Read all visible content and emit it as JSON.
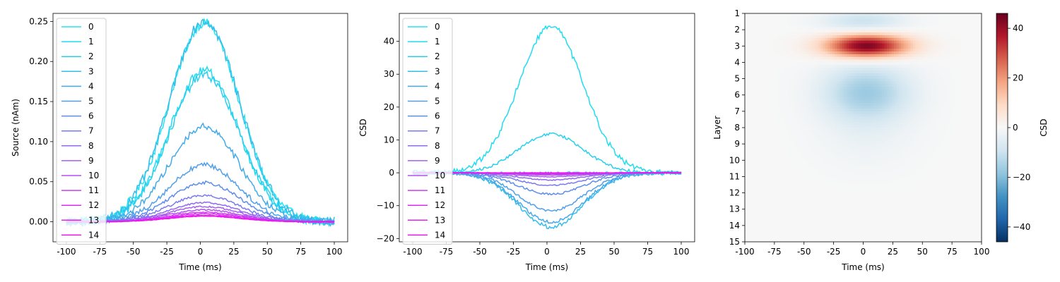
{
  "chart_data": [
    {
      "type": "line",
      "xlabel": "Time (ms)",
      "ylabel": "Source (nAm)",
      "xlim": [
        -110,
        110
      ],
      "ylim": [
        -0.025,
        0.26
      ],
      "xticks": [
        -100,
        -75,
        -50,
        -25,
        0,
        25,
        50,
        75,
        100
      ],
      "yticks": [
        0.0,
        0.05,
        0.1,
        0.15,
        0.2,
        0.25
      ],
      "ytick_labels": [
        "0.00",
        "0.05",
        "0.10",
        "0.15",
        "0.20",
        "0.25"
      ],
      "x_range": [
        -100,
        100
      ],
      "series_shape": "gaussian",
      "series_sigma_ms": 26,
      "series_peak_ms": 3,
      "legend": "upper-left",
      "series": [
        {
          "name": "0",
          "color": "#22e5f3",
          "peak": 0.248,
          "noise": 0.006
        },
        {
          "name": "1",
          "color": "#20dcf1",
          "peak": 0.189,
          "noise": 0.005
        },
        {
          "name": "2",
          "color": "#27d0ee",
          "peak": 0.183,
          "noise": 0.005
        },
        {
          "name": "3",
          "color": "#35bdea",
          "peak": 0.25,
          "noise": 0.006
        },
        {
          "name": "4",
          "color": "#43aaea",
          "peak": 0.119,
          "noise": 0.004
        },
        {
          "name": "5",
          "color": "#4f9fea",
          "peak": 0.071,
          "noise": 0.003
        },
        {
          "name": "6",
          "color": "#5c8ded",
          "peak": 0.049,
          "noise": 0.002
        },
        {
          "name": "7",
          "color": "#7a7aef",
          "peak": 0.033,
          "noise": 0.0015
        },
        {
          "name": "8",
          "color": "#9168f0",
          "peak": 0.024,
          "noise": 0.001
        },
        {
          "name": "9",
          "color": "#a45ff0",
          "peak": 0.019,
          "noise": 0.001
        },
        {
          "name": "10",
          "color": "#b54ff0",
          "peak": 0.015,
          "noise": 0.0008
        },
        {
          "name": "11",
          "color": "#c93df0",
          "peak": 0.012,
          "noise": 0.0006
        },
        {
          "name": "12",
          "color": "#d92ef1",
          "peak": 0.01,
          "noise": 0.0005
        },
        {
          "name": "13",
          "color": "#e620f1",
          "peak": 0.008,
          "noise": 0.0004
        },
        {
          "name": "14",
          "color": "#f012f0",
          "peak": 0.007,
          "noise": 0.0003
        }
      ]
    },
    {
      "type": "line",
      "xlabel": "Time (ms)",
      "ylabel": "CSD",
      "xlim": [
        -110,
        110
      ],
      "ylim": [
        -21,
        48.5
      ],
      "xticks": [
        -100,
        -75,
        -50,
        -25,
        0,
        25,
        50,
        75,
        100
      ],
      "yticks": [
        -20,
        -10,
        0,
        10,
        20,
        30,
        40
      ],
      "ytick_labels": [
        "−20",
        "−10",
        "0",
        "10",
        "20",
        "30",
        "40"
      ],
      "x_range": [
        -100,
        100
      ],
      "series_shape": "gaussian",
      "series_sigma_ms": 24,
      "series_peak_ms": 3,
      "legend": "upper-left",
      "series": [
        {
          "name": "0",
          "color": "#22e5f3",
          "peak": 0.0,
          "noise": 0.3
        },
        {
          "name": "1",
          "color": "#20dcf1",
          "peak": 44.5,
          "noise": 0.9
        },
        {
          "name": "2",
          "color": "#27d0ee",
          "peak": 11.8,
          "noise": 0.4
        },
        {
          "name": "3",
          "color": "#35bdea",
          "peak": -16.5,
          "noise": 0.6
        },
        {
          "name": "4",
          "color": "#43aaea",
          "peak": -15.0,
          "noise": 0.5
        },
        {
          "name": "5",
          "color": "#4f9fea",
          "peak": -11.5,
          "noise": 0.4
        },
        {
          "name": "6",
          "color": "#5c8ded",
          "peak": -6.5,
          "noise": 0.3
        },
        {
          "name": "7",
          "color": "#7a7aef",
          "peak": -3.8,
          "noise": 0.2
        },
        {
          "name": "8",
          "color": "#9168f0",
          "peak": -2.2,
          "noise": 0.15
        },
        {
          "name": "9",
          "color": "#a45ff0",
          "peak": -1.2,
          "noise": 0.1
        },
        {
          "name": "10",
          "color": "#b54ff0",
          "peak": -0.7,
          "noise": 0.05
        },
        {
          "name": "11",
          "color": "#c93df0",
          "peak": -0.4,
          "noise": 0.03
        },
        {
          "name": "12",
          "color": "#d92ef1",
          "peak": -0.2,
          "noise": 0.02
        },
        {
          "name": "13",
          "color": "#e620f1",
          "peak": -0.1,
          "noise": 0.01
        },
        {
          "name": "14",
          "color": "#f012f0",
          "peak": 0.0,
          "noise": 0.01
        }
      ]
    },
    {
      "type": "heatmap",
      "xlabel": "Time (ms)",
      "ylabel": "Layer",
      "colorbar_label": "CSD",
      "colormap": "RdBu_r",
      "xlim": [
        -100,
        100
      ],
      "xticks": [
        -100,
        -75,
        -50,
        -25,
        0,
        25,
        50,
        75,
        100
      ],
      "layers": [
        "1",
        "2",
        "3",
        "4",
        "5",
        "6",
        "7",
        "8",
        "9",
        "10",
        "11",
        "12",
        "13",
        "14",
        "15"
      ],
      "vmin": -46,
      "vmax": 46,
      "cbar_ticks": [
        -40,
        -20,
        0,
        20,
        40
      ],
      "cbar_tick_labels": [
        "−40",
        "−20",
        "0",
        "20",
        "40"
      ],
      "sources": [
        {
          "layer": 3.0,
          "time": 3,
          "amplitude": 44.5,
          "sigma_t": 24,
          "sigma_layer": 0.5
        },
        {
          "layer": 1.5,
          "time": 0,
          "amplitude": -10,
          "sigma_t": 24,
          "sigma_layer": 0.5
        },
        {
          "layer": 5.8,
          "time": 3,
          "amplitude": -16,
          "sigma_t": 26,
          "sigma_layer": 1.2
        },
        {
          "layer": 8.2,
          "time": 3,
          "amplitude": -3,
          "sigma_t": 28,
          "sigma_layer": 1.5
        }
      ]
    }
  ]
}
